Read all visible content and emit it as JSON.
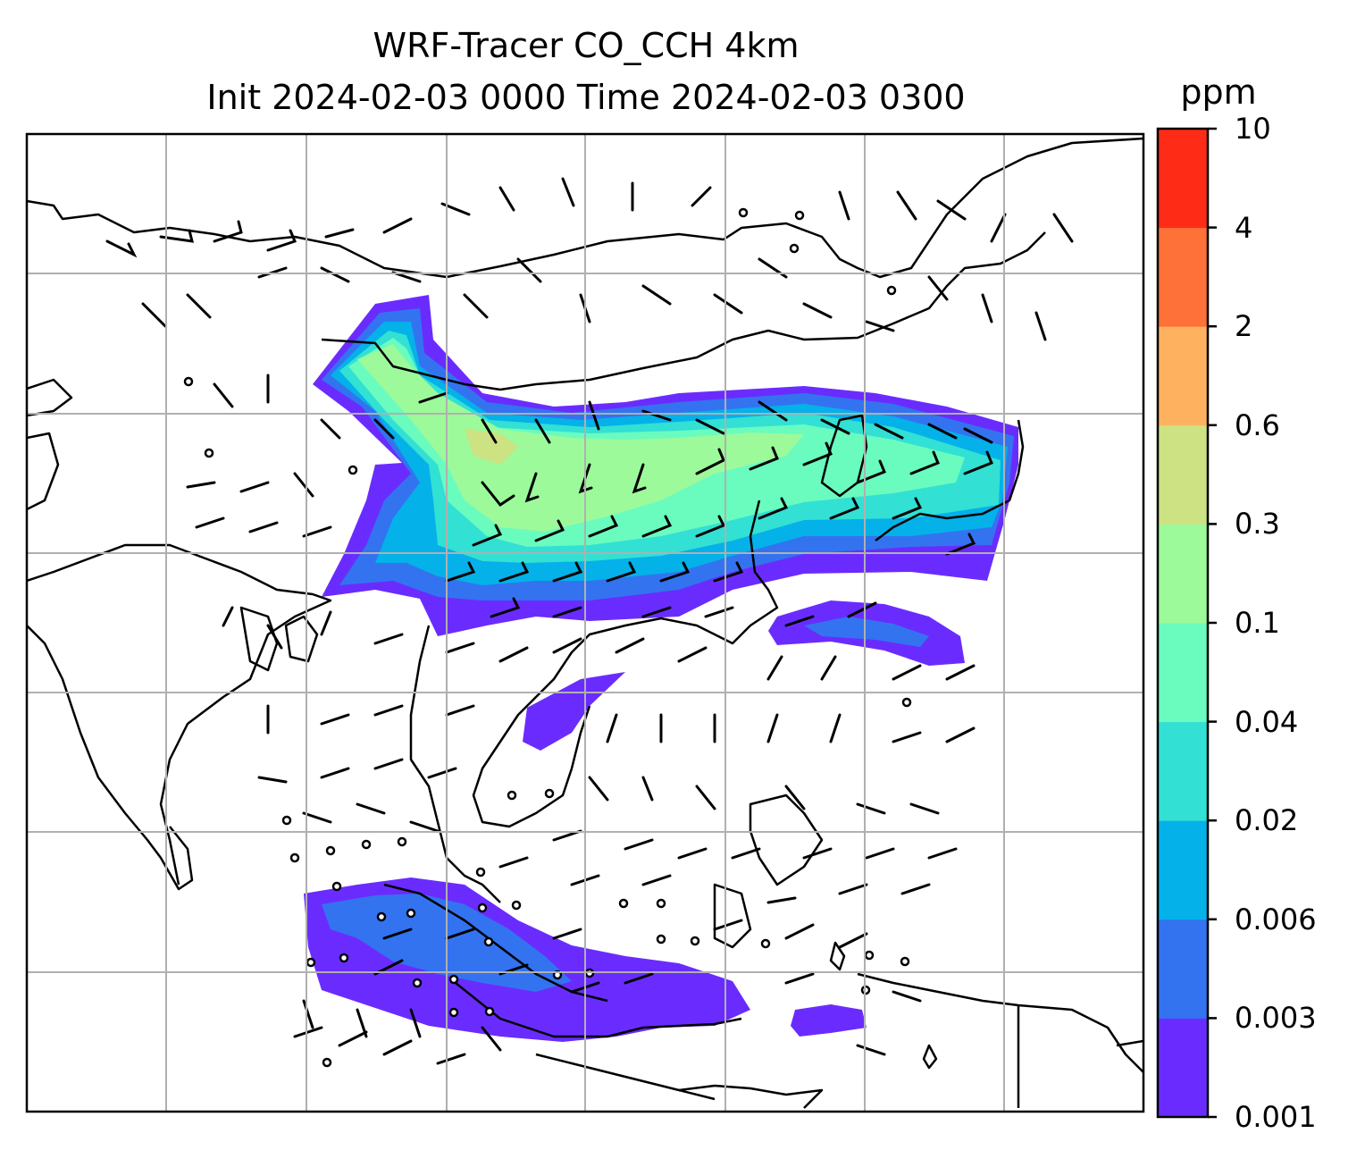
{
  "title": {
    "line1": "WRF-Tracer CO_CCH 4km",
    "line2": "Init 2024-02-03 0000 Time 2024-02-03 0300"
  },
  "colorbar": {
    "unit": "ppm",
    "ticks": [
      "0.001",
      "0.003",
      "0.006",
      "0.02",
      "0.04",
      "0.1",
      "0.3",
      "0.6",
      "2",
      "4",
      "10"
    ],
    "colors": [
      "#6a2cfe",
      "#3373f0",
      "#04b1e9",
      "#32e0d4",
      "#6afbbf",
      "#9cfa9a",
      "#cde283",
      "#feb260",
      "#fe7139",
      "#fe2c17"
    ]
  },
  "map": {
    "projection": "lat-lon grid",
    "gridlines": true,
    "variable": "CO_CCH tracer concentration with wind barbs"
  }
}
